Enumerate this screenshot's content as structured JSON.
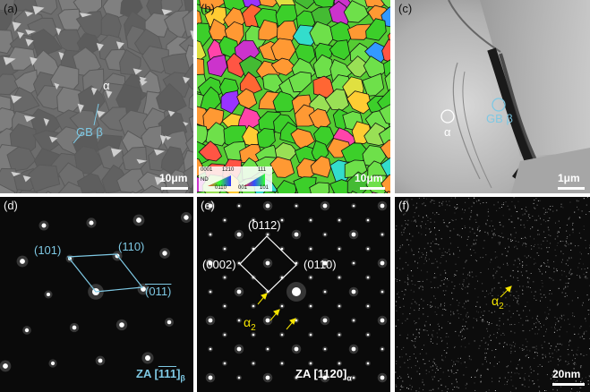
{
  "panels": {
    "a": {
      "label": "(a)",
      "alpha": "α",
      "gb": "GB β",
      "scale": "10μm"
    },
    "b": {
      "label": "(b)",
      "scale": "10μm",
      "legend": {
        "t0001": "0001",
        "t1210": "1210",
        "t111": "111",
        "nd": "ND",
        "t0110": "0110",
        "t001": "001",
        "t101": "101"
      }
    },
    "c": {
      "label": "(c)",
      "alpha": "α",
      "gb": "GB β",
      "scale": "1μm"
    },
    "d": {
      "label": "(d)",
      "p101": "(101)",
      "p110": "(110)",
      "p011": "(011)",
      "za_prefix": "ZA [",
      "za_idx": "111",
      "za_suffix": "]",
      "za_sub": "β"
    },
    "e": {
      "label": "(e)",
      "p0112": "(0112)",
      "p0002": "(0002)",
      "p0110": "(0110)",
      "alpha2": "α",
      "alpha2_sub": "2",
      "za_prefix": "ZA [",
      "za_idx": "1120",
      "za_suffix": "]",
      "za_sub": "α"
    },
    "f": {
      "label": "(f)",
      "alpha2": "α",
      "alpha2_sub": "2",
      "scale": "20nm"
    }
  },
  "colors": {
    "cyan": "#7ec8e3",
    "yellow": "#f5e400",
    "white": "#ffffff"
  }
}
